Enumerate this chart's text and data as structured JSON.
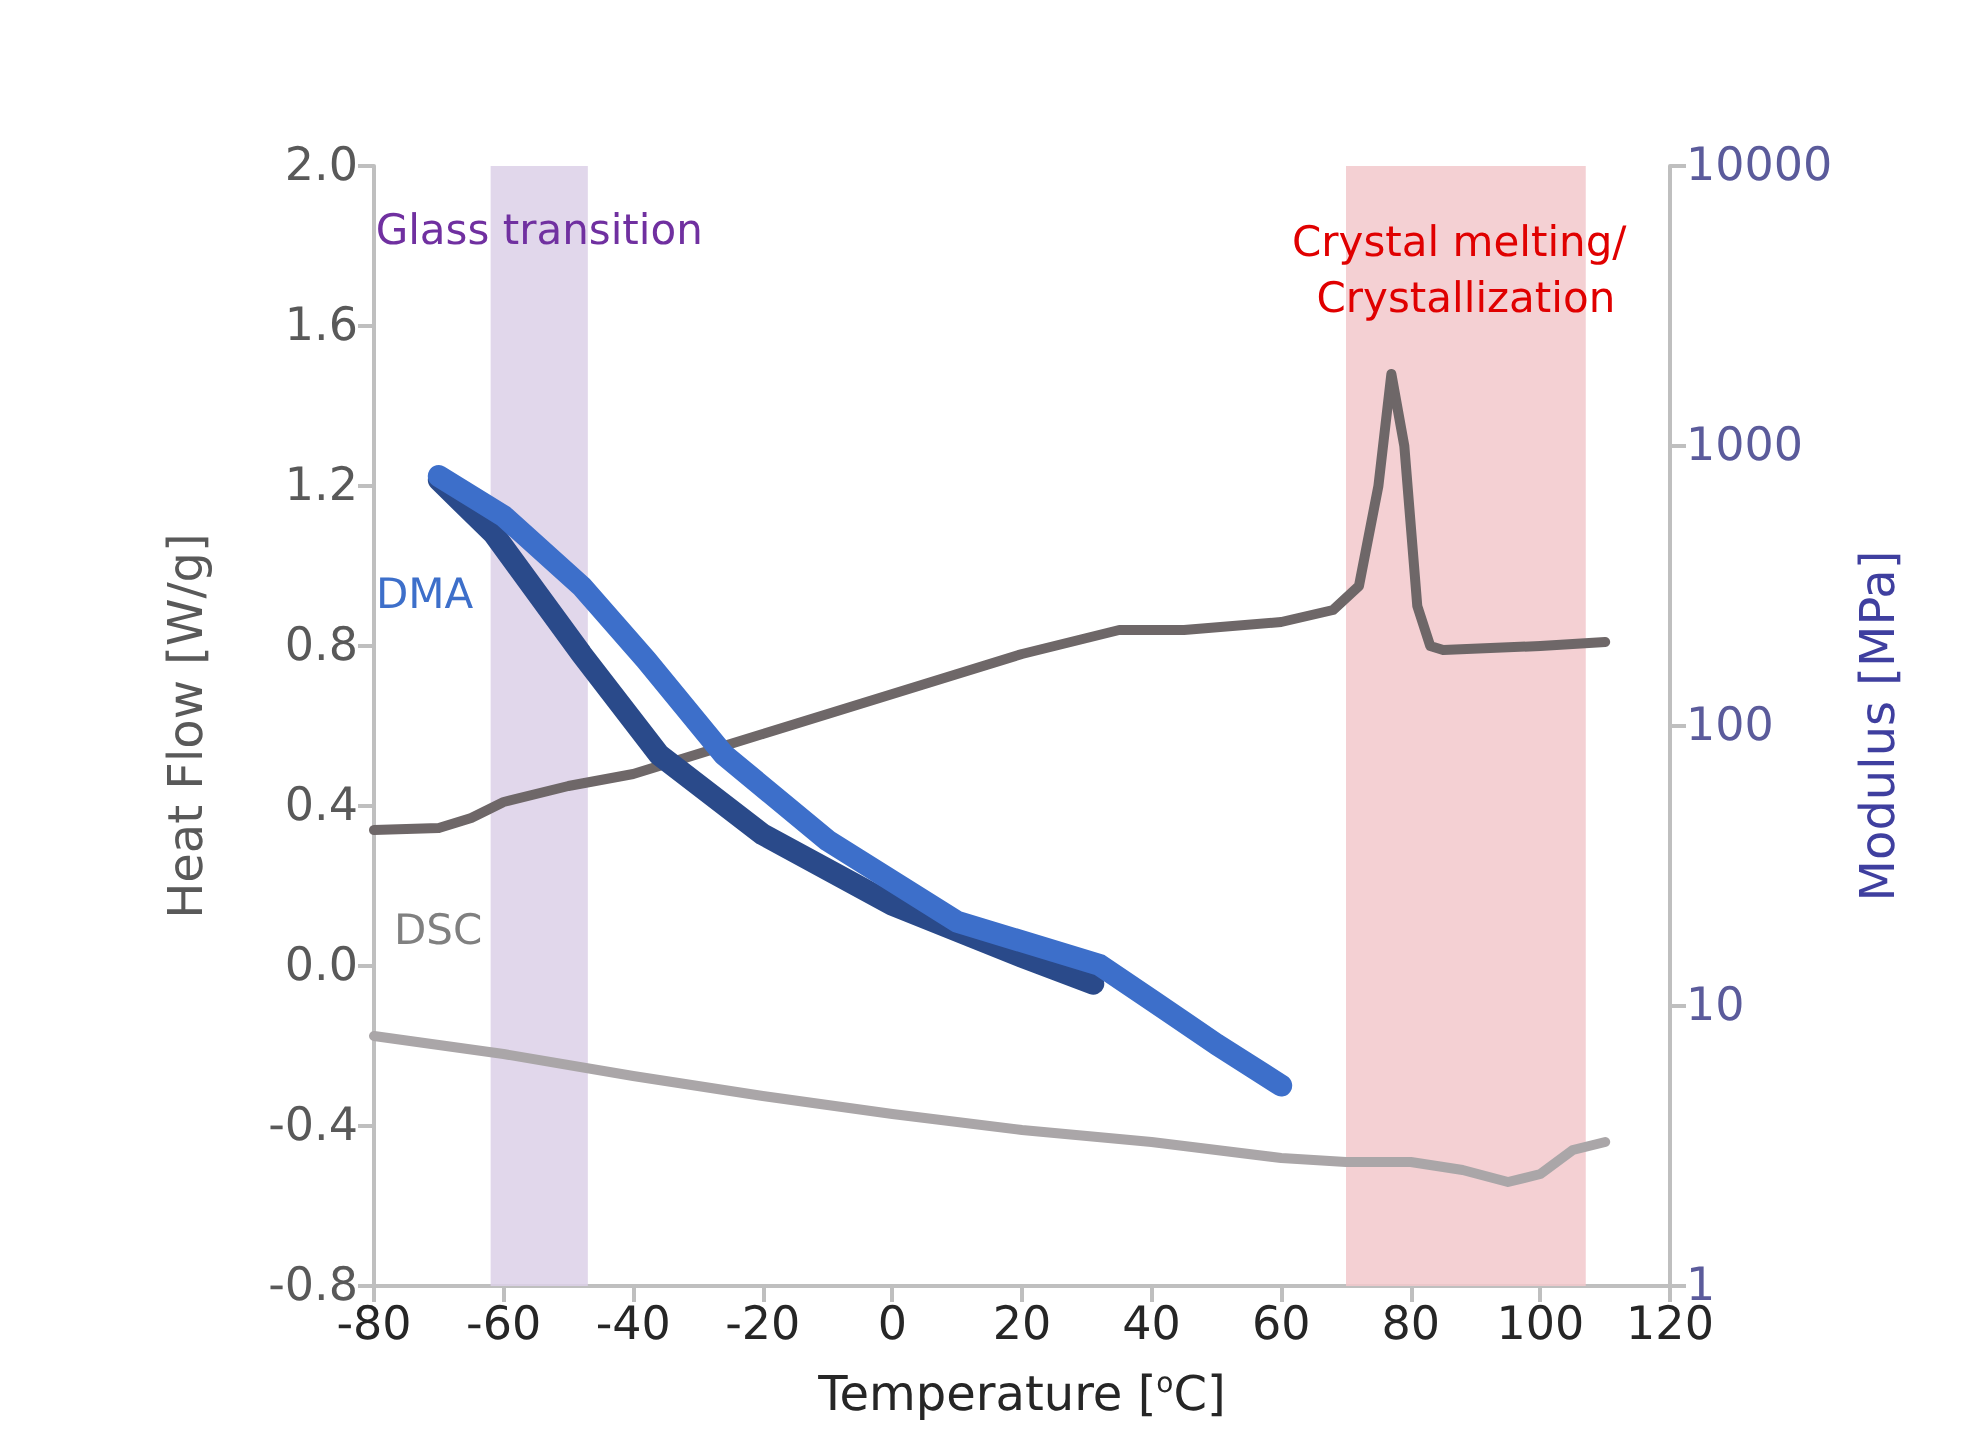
{
  "chart_data": {
    "type": "line",
    "xlabel": "Temperature [$^{o}$C]",
    "ylabel": "Heat Flow [W/g]",
    "y2label": "Modulus [MPa]",
    "xlim": [
      -80,
      120
    ],
    "xticks": [
      -80,
      -60,
      -40,
      -20,
      0,
      20,
      40,
      60,
      80,
      100,
      120
    ],
    "ylim": [
      -0.8,
      2.0
    ],
    "yticks": [
      {
        "value": -0.8,
        "label": "-0.8"
      },
      {
        "value": -0.4,
        "label": "-0.4"
      },
      {
        "value": 0,
        "label": "0.0"
      },
      {
        "value": 0.4,
        "label": "0.4"
      },
      {
        "value": 0.8,
        "label": "0.8"
      },
      {
        "value": 1.2,
        "label": "1.2"
      },
      {
        "value": 1.6,
        "label": "1.6"
      },
      {
        "value": 2.0,
        "label": "2.0"
      }
    ],
    "y2lim": [
      1,
      10000
    ],
    "y2ticks": [
      1,
      10,
      100,
      1000,
      10000
    ],
    "log": "y2",
    "grid": false,
    "marker": "none",
    "line_style": "solid",
    "series": [
      {
        "color": "#6e6768",
        "x": [
          -80,
          -70,
          -65,
          -60,
          -50,
          -40,
          -30,
          -20,
          -10,
          0,
          10,
          20,
          30,
          35,
          45,
          60,
          68,
          72,
          75,
          77,
          79,
          81,
          83,
          85,
          100,
          110
        ],
        "values": [
          0.34,
          0.345,
          0.37,
          0.41,
          0.45,
          0.48,
          0.53,
          0.58,
          0.63,
          0.68,
          0.73,
          0.78,
          0.82,
          0.84,
          0.84,
          0.86,
          0.89,
          0.95,
          1.2,
          1.48,
          1.3,
          0.9,
          0.8,
          0.79,
          0.8,
          0.81
        ]
      },
      {
        "color": "#aaa6a8",
        "x": [
          -80,
          -60,
          -40,
          -20,
          0,
          20,
          40,
          60,
          70,
          80,
          88,
          95,
          100,
          105,
          110
        ],
        "values": [
          -0.175,
          -0.22,
          -0.275,
          -0.325,
          -0.37,
          -0.41,
          -0.44,
          -0.48,
          -0.49,
          -0.49,
          -0.51,
          -0.54,
          -0.52,
          -0.46,
          -0.44
        ]
      },
      {
        "color": "#2a4a8a",
        "axis": "y2",
        "x": [
          -70,
          -61.5,
          -48,
          -36,
          -20,
          0,
          20,
          31
        ],
        "values": [
          756,
          485,
          181,
          79,
          41,
          23,
          15,
          12
        ]
      },
      {
        "color": "#3d6fca",
        "axis": "y2",
        "x": [
          -70,
          -60,
          -48,
          -38,
          -26,
          -10,
          10,
          32,
          40,
          50,
          60
        ],
        "values": [
          781,
          562,
          316,
          172,
          79,
          39,
          20,
          14,
          10.5,
          7.3,
          5.2
        ]
      }
    ],
    "bands": [
      {
        "axis": "x",
        "from": -62,
        "to": -47,
        "label": "Glass transition",
        "color": "#dcd0e8"
      },
      {
        "axis": "x",
        "from": 70,
        "to": 107,
        "label": "Crystal melting/ Crystallization",
        "color": "#f2c8cb"
      }
    ],
    "annotations": [
      "DMA",
      "DSC"
    ]
  }
}
